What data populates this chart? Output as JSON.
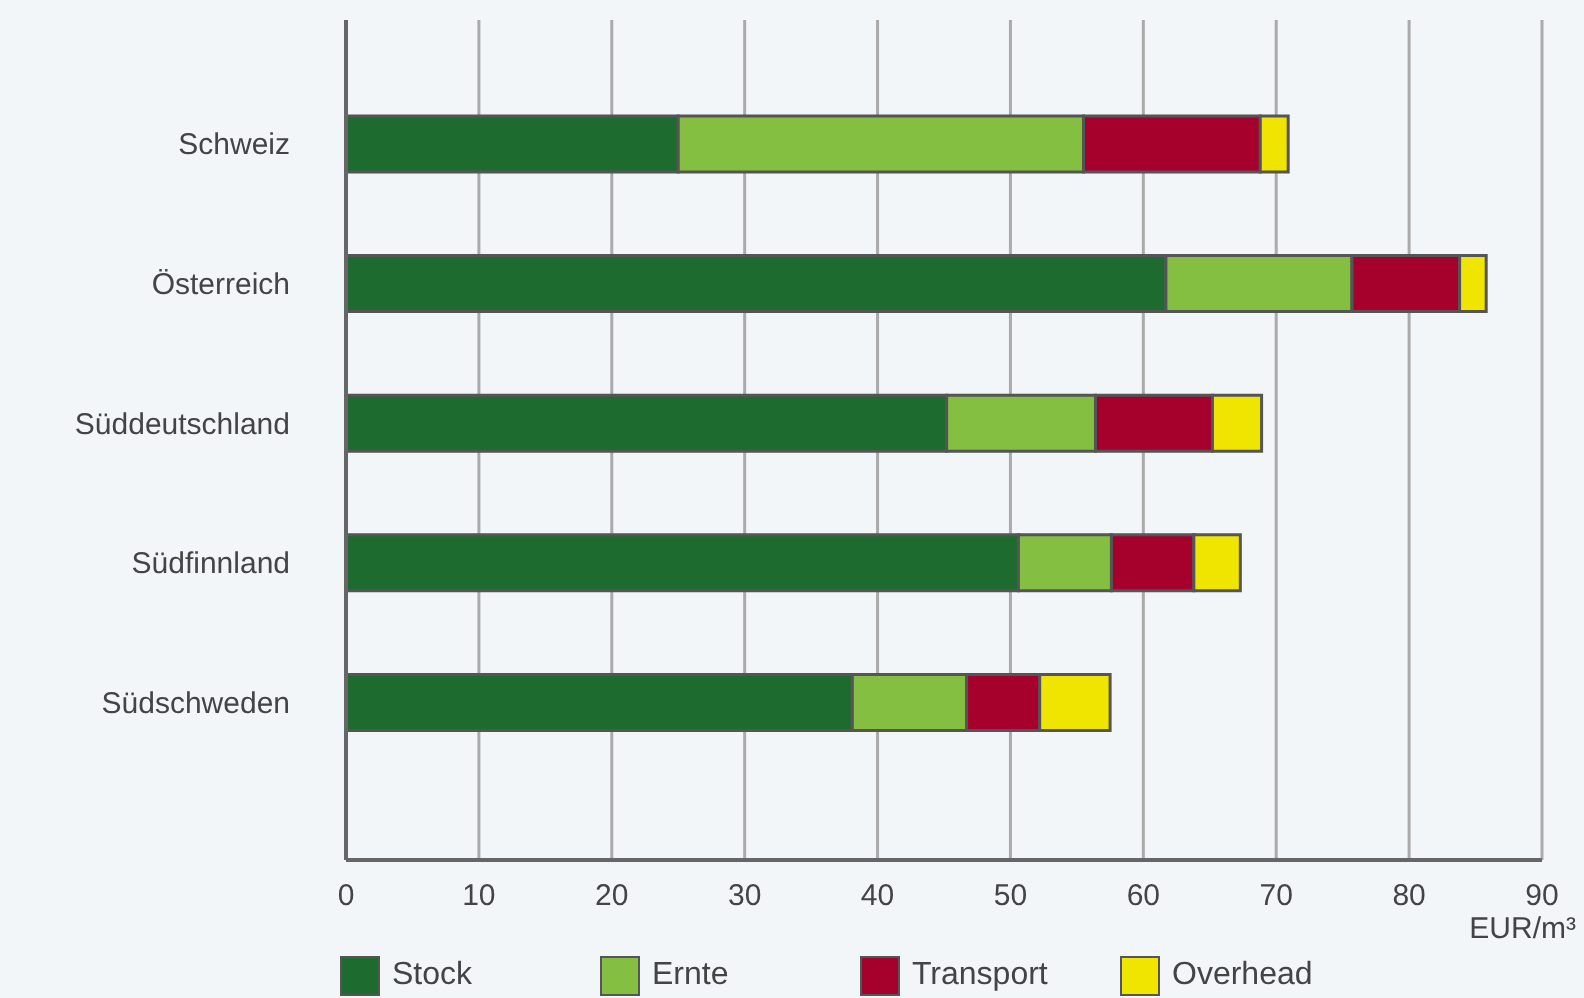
{
  "chart_data": {
    "type": "bar",
    "orientation": "horizontal",
    "stacked": true,
    "xlabel": "EUR/m³",
    "categories": [
      "Schweiz",
      "Österreich",
      "Süddeutschland",
      "Südfinnland",
      "Südschweden"
    ],
    "series": [
      {
        "name": "Stock",
        "color": "#1e6b30",
        "values": [
          25,
          61.7,
          45.2,
          50.6,
          38.1
        ]
      },
      {
        "name": "Ernte",
        "color": "#84bf41",
        "values": [
          30.5,
          14,
          11.2,
          7,
          8.6
        ]
      },
      {
        "name": "Transport",
        "color": "#a6002c",
        "values": [
          13.3,
          8.1,
          8.8,
          6.2,
          5.5
        ]
      },
      {
        "name": "Overhead",
        "color": "#f0e500",
        "values": [
          2.1,
          2,
          3.7,
          3.5,
          5.3
        ]
      }
    ],
    "xlim": [
      0,
      90
    ],
    "xticks": [
      0,
      10,
      20,
      30,
      40,
      50,
      60,
      70,
      80,
      90
    ],
    "grid": "x",
    "legend": "bottom"
  }
}
